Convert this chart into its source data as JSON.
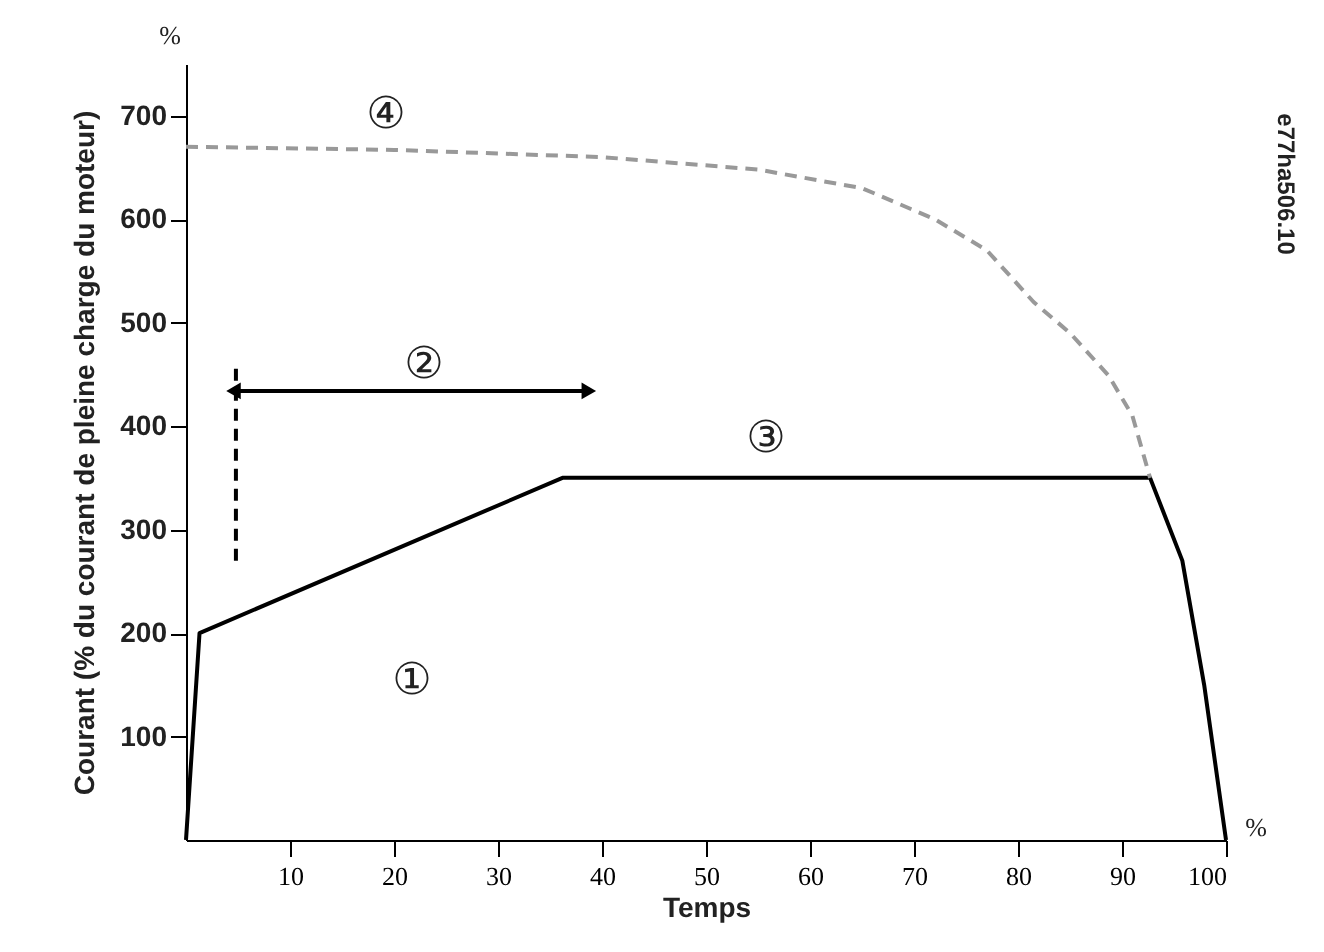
{
  "chart_data": {
    "type": "line",
    "xlabel": "Temps",
    "ylabel": "Courant (% du courant de pleine charge du moteur)",
    "xlim": [
      0,
      100
    ],
    "ylim": [
      0,
      750
    ],
    "xticks": [
      10,
      20,
      30,
      40,
      50,
      60,
      70,
      80,
      90,
      100
    ],
    "yticks": [
      100,
      200,
      300,
      400,
      500,
      600,
      700
    ],
    "series": [
      {
        "color": "#000000",
        "line_style": "solid",
        "x": [
          0,
          1.3,
          36.2,
          92.7,
          95.8,
          97.9,
          100
        ],
        "values": [
          0,
          200,
          350,
          350,
          270,
          150,
          0
        ]
      },
      {
        "color": "#999999",
        "line_style": "dashed",
        "x": [
          0,
          20,
          40,
          55,
          65,
          72,
          77,
          81.5,
          85,
          88.7,
          91,
          92.7
        ],
        "values": [
          670,
          667,
          660,
          648,
          630,
          600,
          570,
          520,
          490,
          449,
          410,
          350
        ]
      },
      {
        "color": "#000000",
        "line_style": "dashed",
        "x": [
          4.8,
          4.8
        ],
        "values": [
          270,
          460
        ]
      },
      {
        "color": "#000000",
        "line_style": "solid",
        "marker": "triangle",
        "x": [
          4.8,
          38.5
        ],
        "values": [
          434,
          434
        ]
      }
    ],
    "annotations": [
      "%",
      "%",
      "e77ha506.10",
      "①",
      "②",
      "③",
      "④"
    ]
  }
}
